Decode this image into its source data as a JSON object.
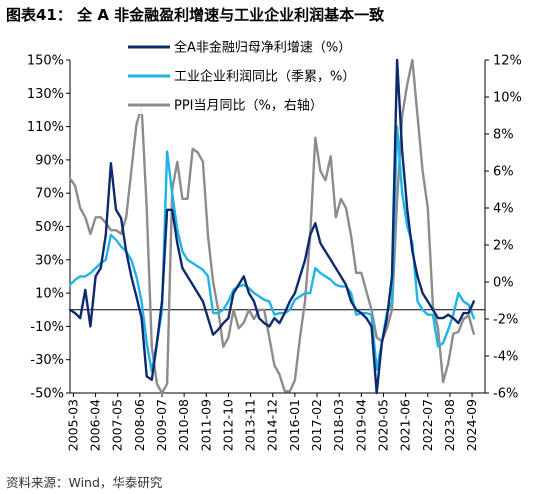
{
  "figure": {
    "title": "图表41：  全 A 非金融盈利增速与工业企业利润基本一致",
    "source": "资料来源：Wind，华泰研究"
  },
  "chart_data": {
    "type": "line",
    "x_ticks": [
      "2005-03",
      "2006-04",
      "2007-05",
      "2008-06",
      "2009-07",
      "2010-08",
      "2011-09",
      "2012-10",
      "2013-11",
      "2014-12",
      "2016-01",
      "2017-02",
      "2018-03",
      "2019-04",
      "2020-05",
      "2021-06",
      "2022-07",
      "2023-08",
      "2024-09"
    ],
    "x_range": [
      2005.0,
      2025.3
    ],
    "y_left": {
      "ticks": [
        "150%",
        "130%",
        "110%",
        "90%",
        "70%",
        "50%",
        "30%",
        "10%",
        "-10%",
        "-30%",
        "-50%"
      ],
      "range": [
        -50,
        150
      ],
      "unit": "%"
    },
    "y_right": {
      "ticks": [
        "12%",
        "10%",
        "8%",
        "6%",
        "4%",
        "2%",
        "0%",
        "-2%",
        "-4%",
        "-6%"
      ],
      "range": [
        -6,
        12
      ],
      "unit": "%"
    },
    "legend_position": "top-left",
    "grid": false,
    "series": [
      {
        "name": "全A非金融归母净利增速（%）",
        "axis": "left",
        "color": "#0c2a6e",
        "x": [
          2005.0,
          2005.25,
          2005.5,
          2005.75,
          2006.0,
          2006.25,
          2006.5,
          2006.75,
          2007.0,
          2007.25,
          2007.5,
          2007.75,
          2008.0,
          2008.25,
          2008.5,
          2008.75,
          2009.0,
          2009.25,
          2009.5,
          2009.75,
          2010.0,
          2010.25,
          2010.5,
          2010.75,
          2011.0,
          2011.25,
          2011.5,
          2011.75,
          2012.0,
          2012.25,
          2012.5,
          2012.75,
          2013.0,
          2013.25,
          2013.5,
          2013.75,
          2014.0,
          2014.25,
          2014.5,
          2014.75,
          2015.0,
          2015.25,
          2015.5,
          2015.75,
          2016.0,
          2016.25,
          2016.5,
          2016.75,
          2017.0,
          2017.25,
          2017.5,
          2017.75,
          2018.0,
          2018.25,
          2018.5,
          2018.75,
          2019.0,
          2019.25,
          2019.5,
          2019.75,
          2020.0,
          2020.25,
          2020.5,
          2020.75,
          2021.0,
          2021.25,
          2021.5,
          2021.75,
          2022.0,
          2022.25,
          2022.5,
          2022.75,
          2023.0,
          2023.25,
          2023.5,
          2023.75,
          2024.0,
          2024.25,
          2024.5,
          2024.75
        ],
        "y": [
          0,
          -2,
          -5,
          12,
          -10,
          20,
          25,
          45,
          88,
          60,
          55,
          35,
          20,
          8,
          -5,
          -40,
          -42,
          -20,
          5,
          60,
          60,
          40,
          25,
          20,
          15,
          10,
          5,
          -5,
          -15,
          -12,
          -8,
          -5,
          10,
          15,
          20,
          10,
          5,
          -5,
          -8,
          -10,
          -5,
          -8,
          -2,
          5,
          10,
          20,
          30,
          45,
          52,
          40,
          35,
          30,
          25,
          20,
          15,
          5,
          0,
          -2,
          -5,
          -10,
          -50,
          -20,
          -5,
          20,
          150,
          95,
          60,
          35,
          20,
          10,
          5,
          0,
          -5,
          -5,
          -3,
          -5,
          -8,
          -2,
          -2,
          5
        ]
      },
      {
        "name": "工业企业利润同比（季累，%）",
        "axis": "left",
        "color": "#21b3e6",
        "x": [
          2005.0,
          2005.25,
          2005.5,
          2005.75,
          2006.0,
          2006.25,
          2006.5,
          2006.75,
          2007.0,
          2007.25,
          2007.5,
          2007.75,
          2008.0,
          2008.25,
          2008.5,
          2008.75,
          2009.0,
          2009.25,
          2009.5,
          2009.75,
          2010.0,
          2010.25,
          2010.5,
          2010.75,
          2011.0,
          2011.25,
          2011.5,
          2011.75,
          2012.0,
          2012.25,
          2012.5,
          2012.75,
          2013.0,
          2013.25,
          2013.5,
          2013.75,
          2014.0,
          2014.25,
          2014.5,
          2014.75,
          2015.0,
          2015.25,
          2015.5,
          2015.75,
          2016.0,
          2016.25,
          2016.5,
          2016.75,
          2017.0,
          2017.25,
          2017.5,
          2017.75,
          2018.0,
          2018.25,
          2018.5,
          2018.75,
          2019.0,
          2019.25,
          2019.5,
          2019.75,
          2020.0,
          2020.25,
          2020.5,
          2020.75,
          2021.0,
          2021.25,
          2021.5,
          2021.75,
          2022.0,
          2022.25,
          2022.5,
          2022.75,
          2023.0,
          2023.25,
          2023.5,
          2023.75,
          2024.0,
          2024.25,
          2024.5,
          2024.75
        ],
        "y": [
          15,
          18,
          20,
          20,
          22,
          25,
          28,
          30,
          45,
          42,
          38,
          35,
          30,
          20,
          5,
          -20,
          -37,
          -20,
          0,
          95,
          70,
          48,
          35,
          30,
          28,
          26,
          24,
          20,
          -2,
          -2,
          0,
          5,
          12,
          14,
          15,
          13,
          10,
          8,
          6,
          5,
          -3,
          -2,
          -2,
          0,
          6,
          8,
          10,
          10,
          25,
          22,
          20,
          18,
          15,
          14,
          14,
          10,
          -3,
          -2,
          -2,
          -3,
          -36,
          -20,
          -2,
          5,
          110,
          70,
          50,
          40,
          5,
          0,
          -3,
          -3,
          -22,
          -20,
          -12,
          -3,
          10,
          5,
          3,
          -5
        ]
      },
      {
        "name": "PPI当月同比（%，右轴）",
        "axis": "right",
        "color": "#8c8c8c",
        "x": [
          2005.0,
          2005.25,
          2005.5,
          2005.75,
          2006.0,
          2006.25,
          2006.5,
          2006.75,
          2007.0,
          2007.25,
          2007.5,
          2007.75,
          2008.0,
          2008.25,
          2008.5,
          2008.75,
          2009.0,
          2009.25,
          2009.5,
          2009.75,
          2010.0,
          2010.25,
          2010.5,
          2010.75,
          2011.0,
          2011.25,
          2011.5,
          2011.75,
          2012.0,
          2012.25,
          2012.5,
          2012.75,
          2013.0,
          2013.25,
          2013.5,
          2013.75,
          2014.0,
          2014.25,
          2014.5,
          2014.75,
          2015.0,
          2015.25,
          2015.5,
          2015.75,
          2016.0,
          2016.25,
          2016.5,
          2016.75,
          2017.0,
          2017.25,
          2017.5,
          2017.75,
          2018.0,
          2018.25,
          2018.5,
          2018.75,
          2019.0,
          2019.25,
          2019.5,
          2019.75,
          2020.0,
          2020.25,
          2020.5,
          2020.75,
          2021.0,
          2021.25,
          2021.5,
          2021.75,
          2022.0,
          2022.25,
          2022.5,
          2022.75,
          2023.0,
          2023.25,
          2023.5,
          2023.75,
          2024.0,
          2024.25,
          2024.5,
          2024.75
        ],
        "y": [
          5.6,
          5.2,
          4.0,
          3.5,
          2.6,
          3.5,
          3.5,
          3.2,
          2.8,
          2.8,
          2.6,
          3.5,
          6.0,
          8.5,
          9.5,
          4.0,
          -3.5,
          -5.5,
          -8.2,
          -5.5,
          5.0,
          6.5,
          4.5,
          4.5,
          7.2,
          7.0,
          6.5,
          2.5,
          0.0,
          -1.5,
          -3.5,
          -3.0,
          -1.5,
          -2.5,
          -2.2,
          -1.5,
          -2.0,
          -1.5,
          -1.5,
          -3.0,
          -4.5,
          -5.0,
          -5.9,
          -5.9,
          -5.3,
          -3.0,
          -1.0,
          2.5,
          7.8,
          6.0,
          5.5,
          6.8,
          3.5,
          4.5,
          4.0,
          2.5,
          0.5,
          0.5,
          -0.5,
          -1.5,
          -3.0,
          -3.2,
          -2.5,
          -1.5,
          4.4,
          9.0,
          10.7,
          13.5,
          9.0,
          6.0,
          4.0,
          -1.3,
          -2.5,
          -5.4,
          -4.4,
          -2.8,
          -2.7,
          -2.0,
          -1.8,
          -2.8
        ]
      }
    ]
  }
}
